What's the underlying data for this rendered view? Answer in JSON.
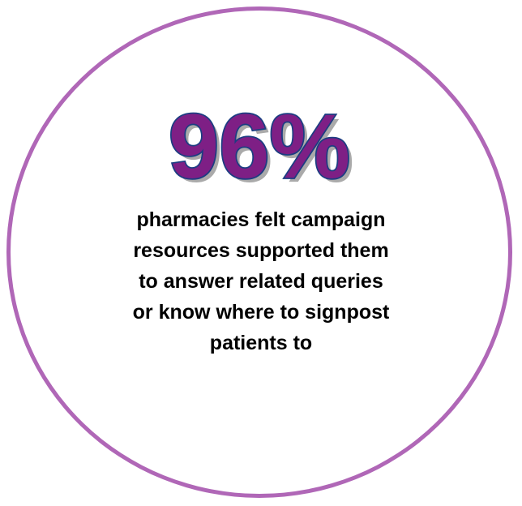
{
  "colors": {
    "circle_border": "#b067b7",
    "stat_fill": "#7e1f85",
    "stat_outline": "#1c3d82",
    "stat_shadow": "#aaaaaa",
    "caption_text": "#000000",
    "background": "#ffffff"
  },
  "stat": {
    "value": "96%"
  },
  "caption": {
    "lines": [
      "pharmacies felt campaign",
      "resources supported them",
      "to answer related queries",
      "or know where to signpost",
      "patients to"
    ]
  }
}
